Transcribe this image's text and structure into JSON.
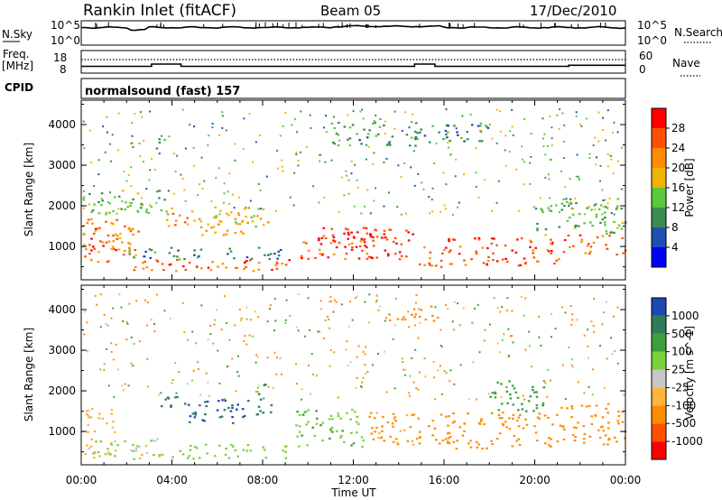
{
  "header": {
    "site": "Rankin Inlet (fitACF)",
    "beam": "Beam 05",
    "date": "17/Dec/2010"
  },
  "noise_panel": {
    "left_label": "N.Sky",
    "right_label": "N.Search",
    "left_ticks": [
      "10^5",
      "10^0"
    ],
    "right_ticks": [
      "10^5",
      "10^0"
    ]
  },
  "freq_panel": {
    "left_label_1": "Freq.",
    "left_label_2": "[MHz]",
    "right_label": "Nave",
    "left_ticks": [
      "18",
      "8"
    ],
    "right_ticks": [
      "60",
      "0"
    ]
  },
  "cpid": {
    "label": "CPID",
    "value": "normalsound (fast) 157"
  },
  "power_panel": {
    "ylabel": "Slant Range [km]",
    "yticks": [
      "4000",
      "3000",
      "2000",
      "1000"
    ],
    "colorbar_label": "Power [dB]",
    "colorbar_ticks": [
      "28",
      "24",
      "20",
      "16",
      "12",
      "8",
      "4"
    ],
    "colors": [
      "#0000ff",
      "#1e50b4",
      "#3c8c50",
      "#5cc83c",
      "#f0b400",
      "#ff8c00",
      "#ff5000",
      "#ff0000"
    ]
  },
  "velocity_panel": {
    "ylabel": "Slant Range [km]",
    "yticks": [
      "4000",
      "3000",
      "2000",
      "1000"
    ],
    "colorbar_label": "Velocity [m s^-1]",
    "colorbar_ticks": [
      "1000",
      "500",
      "100",
      "25",
      "-25",
      "-100",
      "-500",
      "-1000"
    ],
    "colors": [
      "#1e46b4",
      "#2e7a5a",
      "#3c9e3c",
      "#78d23c",
      "#c8c8c8",
      "#ffb43c",
      "#ff8c00",
      "#ff5000",
      "#ff0000"
    ]
  },
  "xaxis": {
    "label": "Time UT",
    "ticks": [
      "00:00",
      "04:00",
      "08:00",
      "12:00",
      "16:00",
      "20:00",
      "00:00"
    ]
  },
  "chart_data": {
    "type": "heatmap",
    "title": "Rankin Inlet (fitACF) Beam 05 17/Dec/2010",
    "xlabel": "Time UT",
    "ylabel": "Slant Range [km]",
    "xlim_hours": [
      0,
      24
    ],
    "ylim_km": [
      180,
      4600
    ],
    "freq_steps": [
      [
        0,
        11.0
      ],
      [
        3.1,
        12.0
      ],
      [
        4.4,
        11.0
      ],
      [
        14.7,
        12.0
      ],
      [
        15.6,
        11.0
      ],
      [
        21.5,
        11.5
      ],
      [
        24,
        11.5
      ]
    ],
    "power_blobs": [
      {
        "t0": 0.0,
        "t1": 2.6,
        "r0": 600,
        "r1": 1700,
        "v": 22
      },
      {
        "t0": 0.3,
        "t1": 1.6,
        "r0": 900,
        "r1": 1500,
        "v": 27
      },
      {
        "t0": 2.2,
        "t1": 3.2,
        "r0": 300,
        "r1": 700,
        "v": 24
      },
      {
        "t0": 3.4,
        "t1": 4.9,
        "r0": 1500,
        "r1": 1900,
        "v": 22
      },
      {
        "t0": 4.9,
        "t1": 7.4,
        "r0": 1300,
        "r1": 1900,
        "v": 20
      },
      {
        "t0": 3.2,
        "t1": 9.2,
        "r0": 350,
        "r1": 700,
        "v": 25
      },
      {
        "t0": 5.8,
        "t1": 8.4,
        "r0": 1500,
        "r1": 2000,
        "v": 18
      },
      {
        "t0": 9.6,
        "t1": 14.6,
        "r0": 700,
        "r1": 1500,
        "v": 27
      },
      {
        "t0": 10.4,
        "t1": 14.0,
        "r0": 1000,
        "r1": 1400,
        "v": 29
      },
      {
        "t0": 14.8,
        "t1": 16.0,
        "r0": 500,
        "r1": 1100,
        "v": 24
      },
      {
        "t0": 16.0,
        "t1": 21.2,
        "r0": 550,
        "r1": 1250,
        "v": 27
      },
      {
        "t0": 21.2,
        "t1": 24.0,
        "r0": 800,
        "r1": 1300,
        "v": 25
      },
      {
        "t0": 20.0,
        "t1": 24.0,
        "r0": 1300,
        "r1": 2200,
        "v": 13
      },
      {
        "t0": 2.0,
        "t1": 9.0,
        "r0": 700,
        "r1": 1000,
        "v": 9
      },
      {
        "t0": 11.0,
        "t1": 18.0,
        "r0": 3500,
        "r1": 4100,
        "v": 10
      },
      {
        "t0": 0.0,
        "t1": 4.0,
        "r0": 1800,
        "r1": 2400,
        "v": 13
      },
      {
        "t0": 3.2,
        "t1": 4.0,
        "r0": 3400,
        "r1": 3700,
        "v": 14
      }
    ],
    "velocity_blobs": [
      {
        "t0": 0.0,
        "t1": 1.5,
        "r0": 300,
        "r1": 1600,
        "v": -40
      },
      {
        "t0": 0.5,
        "t1": 2.5,
        "r0": 400,
        "r1": 800,
        "v": 60
      },
      {
        "t0": 2.0,
        "t1": 3.4,
        "r0": 300,
        "r1": 900,
        "v": 0
      },
      {
        "t0": 3.4,
        "t1": 4.6,
        "r0": 1500,
        "r1": 1900,
        "v": 600
      },
      {
        "t0": 4.6,
        "t1": 7.6,
        "r0": 1200,
        "r1": 1800,
        "v": 1000
      },
      {
        "t0": 3.4,
        "t1": 9.0,
        "r0": 350,
        "r1": 700,
        "v": 60
      },
      {
        "t0": 7.6,
        "t1": 8.4,
        "r0": 1400,
        "r1": 2200,
        "v": 700
      },
      {
        "t0": 9.4,
        "t1": 12.4,
        "r0": 600,
        "r1": 1600,
        "v": 80
      },
      {
        "t0": 12.4,
        "t1": 16.0,
        "r0": 700,
        "r1": 1500,
        "v": -120
      },
      {
        "t0": 16.0,
        "t1": 21.0,
        "r0": 600,
        "r1": 1500,
        "v": -300
      },
      {
        "t0": 21.0,
        "t1": 24.0,
        "r0": 700,
        "r1": 1700,
        "v": -150
      },
      {
        "t0": 13.5,
        "t1": 15.8,
        "r0": 3700,
        "r1": 4100,
        "v": -200
      },
      {
        "t0": 18.0,
        "t1": 20.5,
        "r0": 1500,
        "r1": 2300,
        "v": 200
      }
    ]
  }
}
